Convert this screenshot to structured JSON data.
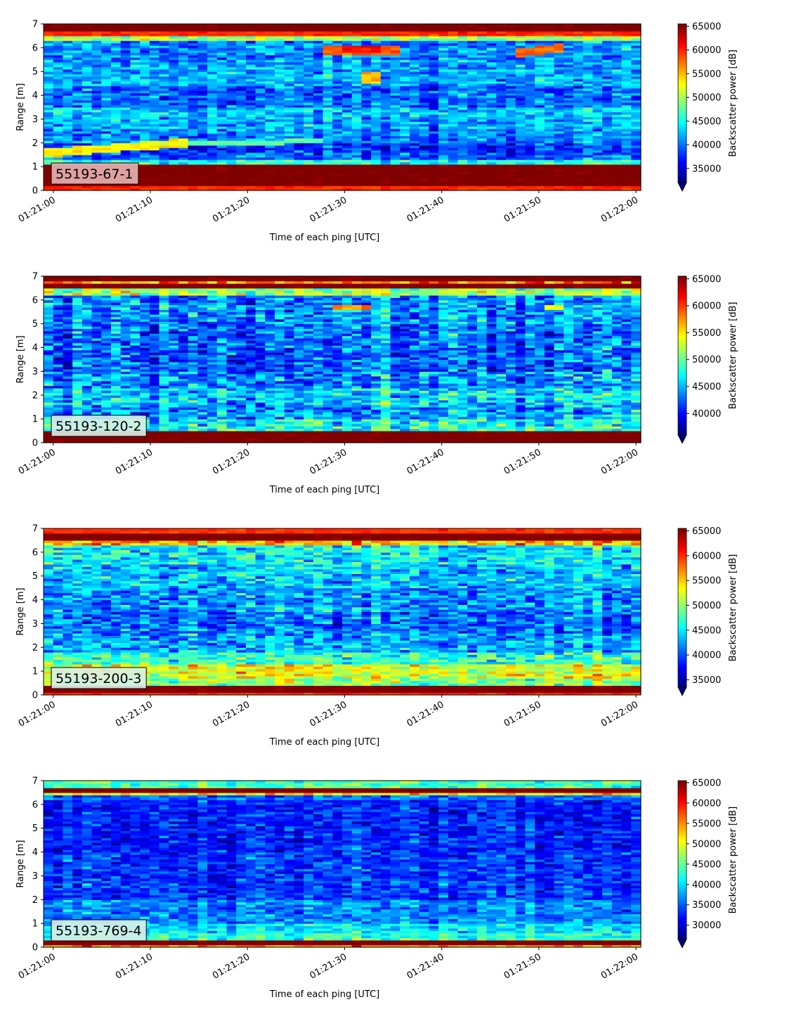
{
  "colormap": "jet",
  "colors": {
    "background": "#ffffff",
    "tag_box_red": "#e8b3b3",
    "tag_box_light": "#d8f0e8",
    "under_color": "#00007f"
  },
  "chart_data": [
    {
      "type": "heatmap",
      "tag": "55193-67-1",
      "xlabel": "Time of each ping [UTC]",
      "ylabel": "Range [m]",
      "colorbar_label": "Backscatter power [dB]",
      "x_ticks": [
        "01:21:00",
        "01:21:10",
        "01:21:20",
        "01:21:30",
        "01:21:40",
        "01:21:50",
        "01:22:00"
      ],
      "y_ticks": [
        "0",
        "1",
        "2",
        "3",
        "4",
        "5",
        "6",
        "7"
      ],
      "colorbar_ticks": [
        "35000",
        "40000",
        "45000",
        "50000",
        "55000",
        "60000",
        "65000"
      ],
      "xlim_seconds": [
        -1,
        60.5
      ],
      "ylim": [
        0,
        7
      ],
      "clim": [
        32000,
        65500
      ],
      "tag_box_color": "#e8b3b3",
      "bands": [
        {
          "y0": 0.0,
          "y1": 0.25,
          "value": 60000
        },
        {
          "y0": 0.25,
          "y1": 1.1,
          "value": 66000
        },
        {
          "y0": 1.1,
          "y1": 1.3,
          "value": 45500
        },
        {
          "y0": 1.3,
          "y1": 1.6,
          "value": 39000
        },
        {
          "y0": 1.6,
          "y1": 2.0,
          "value": 37500
        },
        {
          "y0": 2.0,
          "y1": 2.6,
          "value": 40500
        },
        {
          "y0": 2.6,
          "y1": 3.1,
          "value": 42000
        },
        {
          "y0": 3.1,
          "y1": 3.5,
          "value": 43000
        },
        {
          "y0": 3.5,
          "y1": 4.4,
          "value": 39500
        },
        {
          "y0": 4.4,
          "y1": 5.0,
          "value": 42000
        },
        {
          "y0": 5.0,
          "y1": 5.5,
          "value": 41500
        },
        {
          "y0": 5.5,
          "y1": 6.3,
          "value": 40500
        },
        {
          "y0": 6.3,
          "y1": 6.5,
          "value": 50000
        },
        {
          "y0": 6.5,
          "y1": 6.7,
          "value": 60000
        },
        {
          "y0": 6.7,
          "y1": 7.0,
          "value": 66000
        }
      ],
      "features": [
        {
          "t0": -1,
          "t1": 14,
          "y0a": 1.4,
          "y0b": 1.85,
          "thick": 0.35,
          "value": 53000
        },
        {
          "t0": 14,
          "t1": 28,
          "y0a": 1.85,
          "y0b": 2.0,
          "thick": 0.2,
          "value": 47500
        },
        {
          "t0": 28,
          "t1": 36,
          "y0a": 5.75,
          "y0b": 5.75,
          "thick": 0.35,
          "value": 58000
        },
        {
          "t0": 30,
          "t1": 34,
          "y0a": 5.85,
          "y0b": 5.85,
          "thick": 0.25,
          "value": 61000
        },
        {
          "t0": 31.5,
          "t1": 33.5,
          "y0a": 4.5,
          "y0b": 4.5,
          "thick": 0.5,
          "value": 55000
        },
        {
          "t0": 48,
          "t1": 53,
          "y0a": 5.6,
          "y0b": 5.85,
          "thick": 0.35,
          "value": 58000
        }
      ],
      "noise": 3200
    },
    {
      "type": "heatmap",
      "tag": "55193-120-2",
      "xlabel": "Time of each ping [UTC]",
      "ylabel": "Range [m]",
      "colorbar_label": "Backscatter power [dB]",
      "x_ticks": [
        "01:21:00",
        "01:21:10",
        "01:21:20",
        "01:21:30",
        "01:21:40",
        "01:21:50",
        "01:22:00"
      ],
      "y_ticks": [
        "0",
        "1",
        "2",
        "3",
        "4",
        "5",
        "6",
        "7"
      ],
      "colorbar_ticks": [
        "40000",
        "45000",
        "50000",
        "55000",
        "60000",
        "65000"
      ],
      "xlim_seconds": [
        -1,
        60.5
      ],
      "ylim": [
        0,
        7
      ],
      "clim": [
        36000,
        65500
      ],
      "tag_box_color": "#d8f0e8",
      "bands": [
        {
          "y0": 0.0,
          "y1": 0.5,
          "value": 66000
        },
        {
          "y0": 0.5,
          "y1": 1.0,
          "value": 48000
        },
        {
          "y0": 1.0,
          "y1": 1.6,
          "value": 44500
        },
        {
          "y0": 1.6,
          "y1": 2.3,
          "value": 46000
        },
        {
          "y0": 2.3,
          "y1": 3.0,
          "value": 44000
        },
        {
          "y0": 3.0,
          "y1": 4.0,
          "value": 42500
        },
        {
          "y0": 4.0,
          "y1": 5.0,
          "value": 43000
        },
        {
          "y0": 5.0,
          "y1": 6.2,
          "value": 44000
        },
        {
          "y0": 6.2,
          "y1": 6.45,
          "value": 52000
        },
        {
          "y0": 6.45,
          "y1": 6.65,
          "value": 66000
        },
        {
          "y0": 6.65,
          "y1": 6.85,
          "value": 58000
        },
        {
          "y0": 6.85,
          "y1": 7.0,
          "value": 66000
        }
      ],
      "features": [
        {
          "t0": 29,
          "t1": 33,
          "y0a": 5.6,
          "y0b": 5.6,
          "thick": 0.2,
          "value": 58000
        },
        {
          "t0": 51,
          "t1": 53,
          "y0a": 5.55,
          "y0b": 5.65,
          "thick": 0.2,
          "value": 54000
        }
      ],
      "noise": 3600
    },
    {
      "type": "heatmap",
      "tag": "55193-200-3",
      "xlabel": "Time of each ping [UTC]",
      "ylabel": "Range [m]",
      "colorbar_label": "Backscatter power [dB]",
      "x_ticks": [
        "01:21:00",
        "01:21:10",
        "01:21:20",
        "01:21:30",
        "01:21:40",
        "01:21:50",
        "01:22:00"
      ],
      "y_ticks": [
        "0",
        "1",
        "2",
        "3",
        "4",
        "5",
        "6",
        "7"
      ],
      "colorbar_ticks": [
        "35000",
        "40000",
        "45000",
        "50000",
        "55000",
        "60000",
        "65000"
      ],
      "xlim_seconds": [
        -1,
        60.5
      ],
      "ylim": [
        0,
        7
      ],
      "clim": [
        33500,
        65500
      ],
      "tag_box_color": "#d8f0e8",
      "bands": [
        {
          "y0": 0.0,
          "y1": 0.15,
          "value": 60000
        },
        {
          "y0": 0.15,
          "y1": 0.4,
          "value": 66000
        },
        {
          "y0": 0.4,
          "y1": 0.75,
          "value": 50000
        },
        {
          "y0": 0.75,
          "y1": 1.3,
          "value": 53000
        },
        {
          "y0": 1.3,
          "y1": 1.8,
          "value": 47500
        },
        {
          "y0": 1.8,
          "y1": 2.6,
          "value": 43000
        },
        {
          "y0": 2.6,
          "y1": 3.5,
          "value": 41000
        },
        {
          "y0": 3.5,
          "y1": 4.5,
          "value": 42500
        },
        {
          "y0": 4.5,
          "y1": 5.5,
          "value": 44000
        },
        {
          "y0": 5.5,
          "y1": 6.3,
          "value": 45500
        },
        {
          "y0": 6.3,
          "y1": 6.55,
          "value": 56000
        },
        {
          "y0": 6.55,
          "y1": 6.8,
          "value": 66000
        },
        {
          "y0": 6.8,
          "y1": 7.0,
          "value": 60000
        }
      ],
      "features": [],
      "noise": 3600
    },
    {
      "type": "heatmap",
      "tag": "55193-769-4",
      "xlabel": "Time of each ping [UTC]",
      "ylabel": "Range [m]",
      "colorbar_label": "Backscatter power [dB]",
      "x_ticks": [
        "01:21:00",
        "01:21:10",
        "01:21:20",
        "01:21:30",
        "01:21:40",
        "01:21:50",
        "01:22:00"
      ],
      "y_ticks": [
        "0",
        "1",
        "2",
        "3",
        "4",
        "5",
        "6",
        "7"
      ],
      "colorbar_ticks": [
        "30000",
        "35000",
        "40000",
        "45000",
        "50000",
        "55000",
        "60000",
        "65000"
      ],
      "xlim_seconds": [
        -1,
        60.5
      ],
      "ylim": [
        0,
        7
      ],
      "clim": [
        26500,
        65500
      ],
      "tag_box_color": "#d8f0e8",
      "bands": [
        {
          "y0": 0.0,
          "y1": 0.1,
          "value": 55000
        },
        {
          "y0": 0.1,
          "y1": 0.3,
          "value": 66000
        },
        {
          "y0": 0.3,
          "y1": 0.6,
          "value": 43000
        },
        {
          "y0": 0.6,
          "y1": 1.0,
          "value": 40500
        },
        {
          "y0": 1.0,
          "y1": 2.0,
          "value": 36500
        },
        {
          "y0": 2.0,
          "y1": 4.0,
          "value": 33500
        },
        {
          "y0": 4.0,
          "y1": 6.2,
          "value": 32500
        },
        {
          "y0": 6.2,
          "y1": 6.4,
          "value": 35500
        },
        {
          "y0": 6.4,
          "y1": 6.55,
          "value": 52000
        },
        {
          "y0": 6.55,
          "y1": 6.75,
          "value": 66000
        },
        {
          "y0": 6.75,
          "y1": 7.0,
          "value": 44000
        }
      ],
      "features": [],
      "noise": 3200
    }
  ]
}
